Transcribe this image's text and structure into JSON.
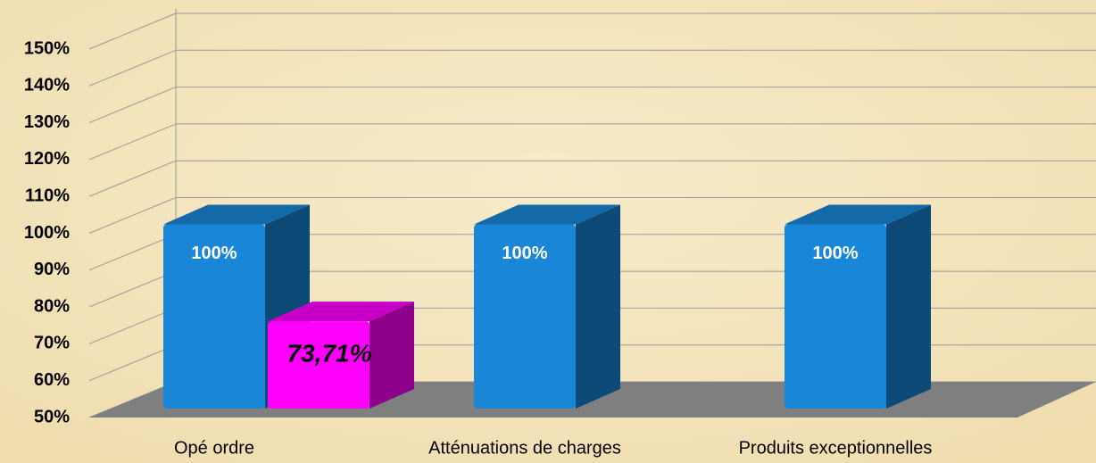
{
  "chart_data": {
    "type": "bar3d",
    "categories": [
      "Opé ordre",
      "Atténuations de charges",
      "Produits exceptionnelles"
    ],
    "series": [
      {
        "color": "#1a86d8",
        "values": [
          100,
          100,
          100
        ],
        "value_labels": [
          "100%",
          "100%",
          "100%"
        ]
      },
      {
        "color": "#ff00ff",
        "values": [
          73.71,
          null,
          null
        ],
        "value_labels": [
          "73,71%",
          null,
          null
        ]
      }
    ],
    "ylim": [
      50,
      150
    ],
    "yticks": [
      {
        "value": 50,
        "label": "50%"
      },
      {
        "value": 60,
        "label": "60%"
      },
      {
        "value": 70,
        "label": "70%"
      },
      {
        "value": 80,
        "label": "80%"
      },
      {
        "value": 90,
        "label": "90%"
      },
      {
        "value": 100,
        "label": "100%"
      },
      {
        "value": 110,
        "label": "110%"
      },
      {
        "value": 120,
        "label": "120%"
      },
      {
        "value": 130,
        "label": "130%"
      },
      {
        "value": 140,
        "label": "140%"
      },
      {
        "value": 150,
        "label": "150%"
      }
    ],
    "grid": true
  }
}
